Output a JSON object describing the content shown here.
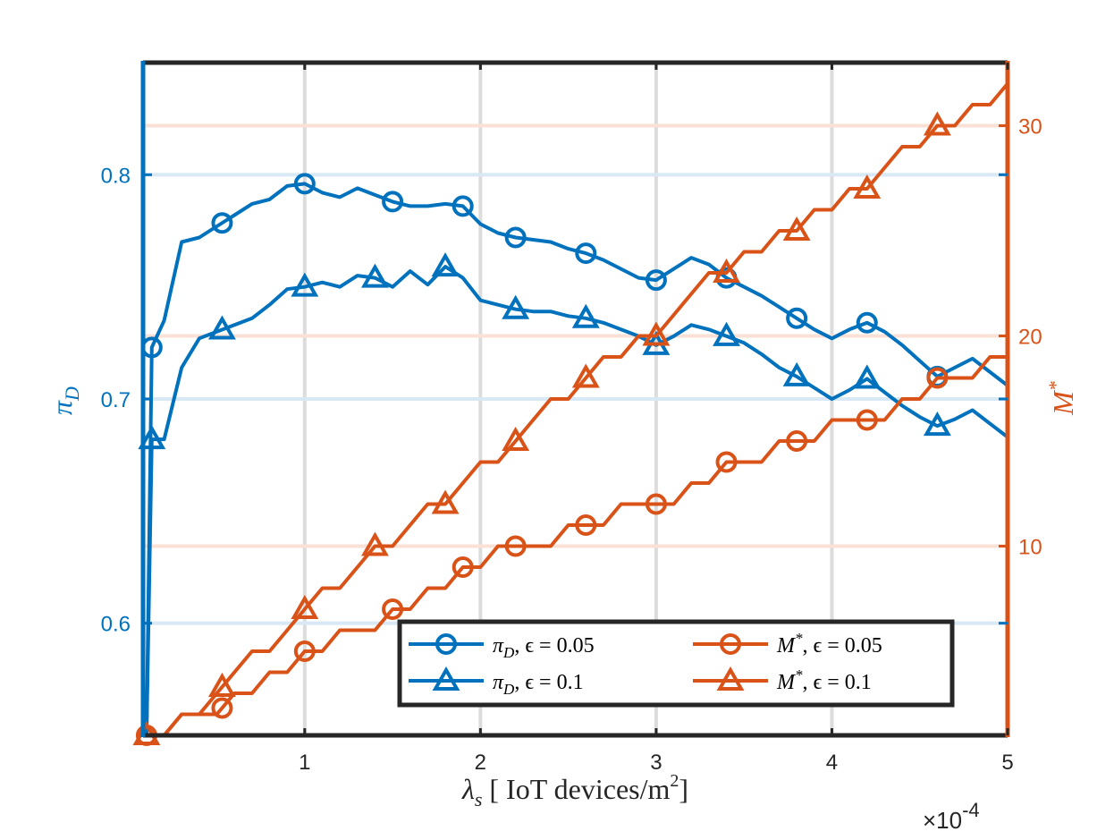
{
  "chart_data": {
    "type": "line",
    "dual_axis": true,
    "x_axis": {
      "title_symbol": "λ",
      "title_subscript": "s",
      "title_text": " [ IoT devices/m",
      "title_sup": "2",
      "title_end": "]",
      "range": [
        0.08,
        5
      ],
      "ticks": [
        1,
        2,
        3,
        4,
        5
      ],
      "tick_labels": [
        "1",
        "2",
        "3",
        "4",
        "5"
      ],
      "exponent_times": "×10",
      "exponent_power": "-4"
    },
    "y_left": {
      "title": "π",
      "title_sub": "D",
      "range": [
        0.55,
        0.85
      ],
      "ticks": [
        0.6,
        0.7,
        0.8
      ],
      "tick_labels": [
        "0.6",
        "0.7",
        "0.8"
      ],
      "color": "#0072BD"
    },
    "y_right": {
      "title": "M",
      "title_sup": "*",
      "range": [
        1,
        33
      ],
      "ticks": [
        10,
        20,
        30
      ],
      "tick_labels": [
        "10",
        "20",
        "30"
      ],
      "color": "#D95319"
    },
    "series": [
      {
        "name": "π_D, ϵ = 0.05",
        "axis": "left",
        "color": "#0072BD",
        "marker": "circle",
        "x": [
          0.1,
          0.13,
          0.2,
          0.3,
          0.4,
          0.5,
          0.6,
          0.7,
          0.8,
          0.9,
          1.0,
          1.1,
          1.2,
          1.3,
          1.4,
          1.5,
          1.6,
          1.7,
          1.8,
          1.9,
          2.0,
          2.1,
          2.2,
          2.3,
          2.4,
          2.5,
          2.6,
          2.7,
          2.8,
          2.9,
          3.0,
          3.1,
          3.2,
          3.3,
          3.4,
          3.5,
          3.6,
          3.7,
          3.8,
          3.9,
          4.0,
          4.1,
          4.2,
          4.3,
          4.4,
          4.5,
          4.6,
          4.7,
          4.8,
          4.9,
          5.0
        ],
        "y": [
          0.55,
          0.723,
          0.735,
          0.77,
          0.772,
          0.777,
          0.782,
          0.787,
          0.789,
          0.795,
          0.796,
          0.792,
          0.79,
          0.794,
          0.791,
          0.788,
          0.786,
          0.786,
          0.787,
          0.786,
          0.778,
          0.774,
          0.772,
          0.771,
          0.77,
          0.767,
          0.765,
          0.762,
          0.758,
          0.754,
          0.753,
          0.758,
          0.763,
          0.76,
          0.754,
          0.75,
          0.746,
          0.741,
          0.736,
          0.731,
          0.727,
          0.731,
          0.734,
          0.73,
          0.724,
          0.717,
          0.71,
          0.714,
          0.718,
          0.712,
          0.706
        ],
        "marker_x": [
          0.13,
          0.53,
          1.0,
          1.5,
          1.9,
          2.2,
          2.6,
          3.0,
          3.4,
          3.8,
          4.2,
          4.6
        ]
      },
      {
        "name": "π_D, ϵ = 0.1",
        "axis": "left",
        "color": "#0072BD",
        "marker": "triangle",
        "x": [
          0.1,
          0.13,
          0.2,
          0.3,
          0.4,
          0.5,
          0.6,
          0.7,
          0.8,
          0.9,
          1.0,
          1.1,
          1.2,
          1.3,
          1.4,
          1.5,
          1.6,
          1.7,
          1.8,
          1.9,
          2.0,
          2.1,
          2.2,
          2.3,
          2.4,
          2.5,
          2.6,
          2.7,
          2.8,
          2.9,
          3.0,
          3.1,
          3.2,
          3.3,
          3.4,
          3.5,
          3.6,
          3.7,
          3.8,
          3.9,
          4.0,
          4.1,
          4.2,
          4.3,
          4.4,
          4.5,
          4.6,
          4.7,
          4.8,
          4.9,
          5.0
        ],
        "y": [
          0.55,
          0.682,
          0.682,
          0.714,
          0.727,
          0.73,
          0.733,
          0.736,
          0.742,
          0.749,
          0.75,
          0.752,
          0.75,
          0.755,
          0.754,
          0.75,
          0.757,
          0.751,
          0.759,
          0.754,
          0.744,
          0.742,
          0.74,
          0.739,
          0.739,
          0.737,
          0.736,
          0.734,
          0.731,
          0.728,
          0.724,
          0.728,
          0.733,
          0.731,
          0.728,
          0.725,
          0.72,
          0.714,
          0.71,
          0.705,
          0.7,
          0.704,
          0.709,
          0.703,
          0.697,
          0.692,
          0.688,
          0.691,
          0.695,
          0.689,
          0.683
        ],
        "marker_x": [
          0.13,
          0.53,
          1.0,
          1.4,
          1.8,
          2.2,
          2.6,
          3.0,
          3.4,
          3.8,
          4.2,
          4.6
        ]
      },
      {
        "name": "M*, ϵ = 0.05",
        "axis": "right",
        "color": "#D95319",
        "marker": "circle",
        "x": [
          0.1,
          0.2,
          0.3,
          0.4,
          0.5,
          0.6,
          0.7,
          0.8,
          0.9,
          1.0,
          1.1,
          1.2,
          1.3,
          1.4,
          1.5,
          1.6,
          1.7,
          1.8,
          1.9,
          2.0,
          2.1,
          2.2,
          2.3,
          2.4,
          2.5,
          2.6,
          2.7,
          2.8,
          2.9,
          3.0,
          3.1,
          3.2,
          3.3,
          3.4,
          3.5,
          3.6,
          3.7,
          3.8,
          3.9,
          4.0,
          4.1,
          4.2,
          4.3,
          4.4,
          4.5,
          4.6,
          4.7,
          4.8,
          4.9,
          5.0
        ],
        "y": [
          1,
          1,
          2,
          2,
          2,
          3,
          3,
          4,
          4,
          5,
          5,
          6,
          6,
          6,
          7,
          7,
          8,
          8,
          9,
          9,
          10,
          10,
          10,
          10,
          11,
          11,
          11,
          12,
          12,
          12,
          12,
          13,
          13,
          14,
          14,
          14,
          15,
          15,
          15,
          16,
          16,
          16,
          16,
          17,
          17,
          18,
          18,
          18,
          19,
          19
        ],
        "marker_x": [
          0.1,
          0.53,
          1.0,
          1.5,
          1.9,
          2.2,
          2.6,
          3.0,
          3.4,
          3.8,
          4.2,
          4.6
        ]
      },
      {
        "name": "M*, ϵ = 0.1",
        "axis": "right",
        "color": "#D95319",
        "marker": "triangle",
        "x": [
          0.1,
          0.2,
          0.3,
          0.4,
          0.5,
          0.6,
          0.7,
          0.8,
          0.9,
          1.0,
          1.1,
          1.2,
          1.3,
          1.4,
          1.5,
          1.6,
          1.7,
          1.8,
          1.9,
          2.0,
          2.1,
          2.2,
          2.3,
          2.4,
          2.5,
          2.6,
          2.7,
          2.8,
          2.9,
          3.0,
          3.1,
          3.2,
          3.3,
          3.4,
          3.5,
          3.6,
          3.7,
          3.8,
          3.9,
          4.0,
          4.1,
          4.2,
          4.3,
          4.4,
          4.5,
          4.6,
          4.7,
          4.8,
          4.9,
          5.0
        ],
        "y": [
          1,
          1,
          2,
          2,
          3,
          4,
          5,
          5,
          6,
          7,
          8,
          8,
          9,
          10,
          10,
          11,
          12,
          12,
          13,
          14,
          14,
          15,
          16,
          17,
          17,
          18,
          19,
          19,
          20,
          20,
          21,
          22,
          23,
          23,
          24,
          24,
          25,
          25,
          26,
          26,
          27,
          27,
          28,
          29,
          29,
          30,
          30,
          31,
          31,
          32
        ],
        "marker_x": [
          0.1,
          0.53,
          1.0,
          1.4,
          1.8,
          2.2,
          2.6,
          3.0,
          3.4,
          3.8,
          4.2,
          4.6
        ]
      }
    ],
    "legend": {
      "placement": "bottom-right",
      "entries": [
        {
          "series": 0,
          "symbol": "π",
          "sub": "D",
          "rest": ", ϵ = 0.05"
        },
        {
          "series": 2,
          "symbol": "M",
          "sup": "*",
          "rest": ", ϵ = 0.05"
        },
        {
          "series": 1,
          "symbol": "π",
          "sub": "D",
          "rest": ", ϵ = 0.1"
        },
        {
          "series": 3,
          "symbol": "M",
          "sup": "*",
          "rest": ", ϵ = 0.1"
        }
      ]
    },
    "grid": true
  }
}
